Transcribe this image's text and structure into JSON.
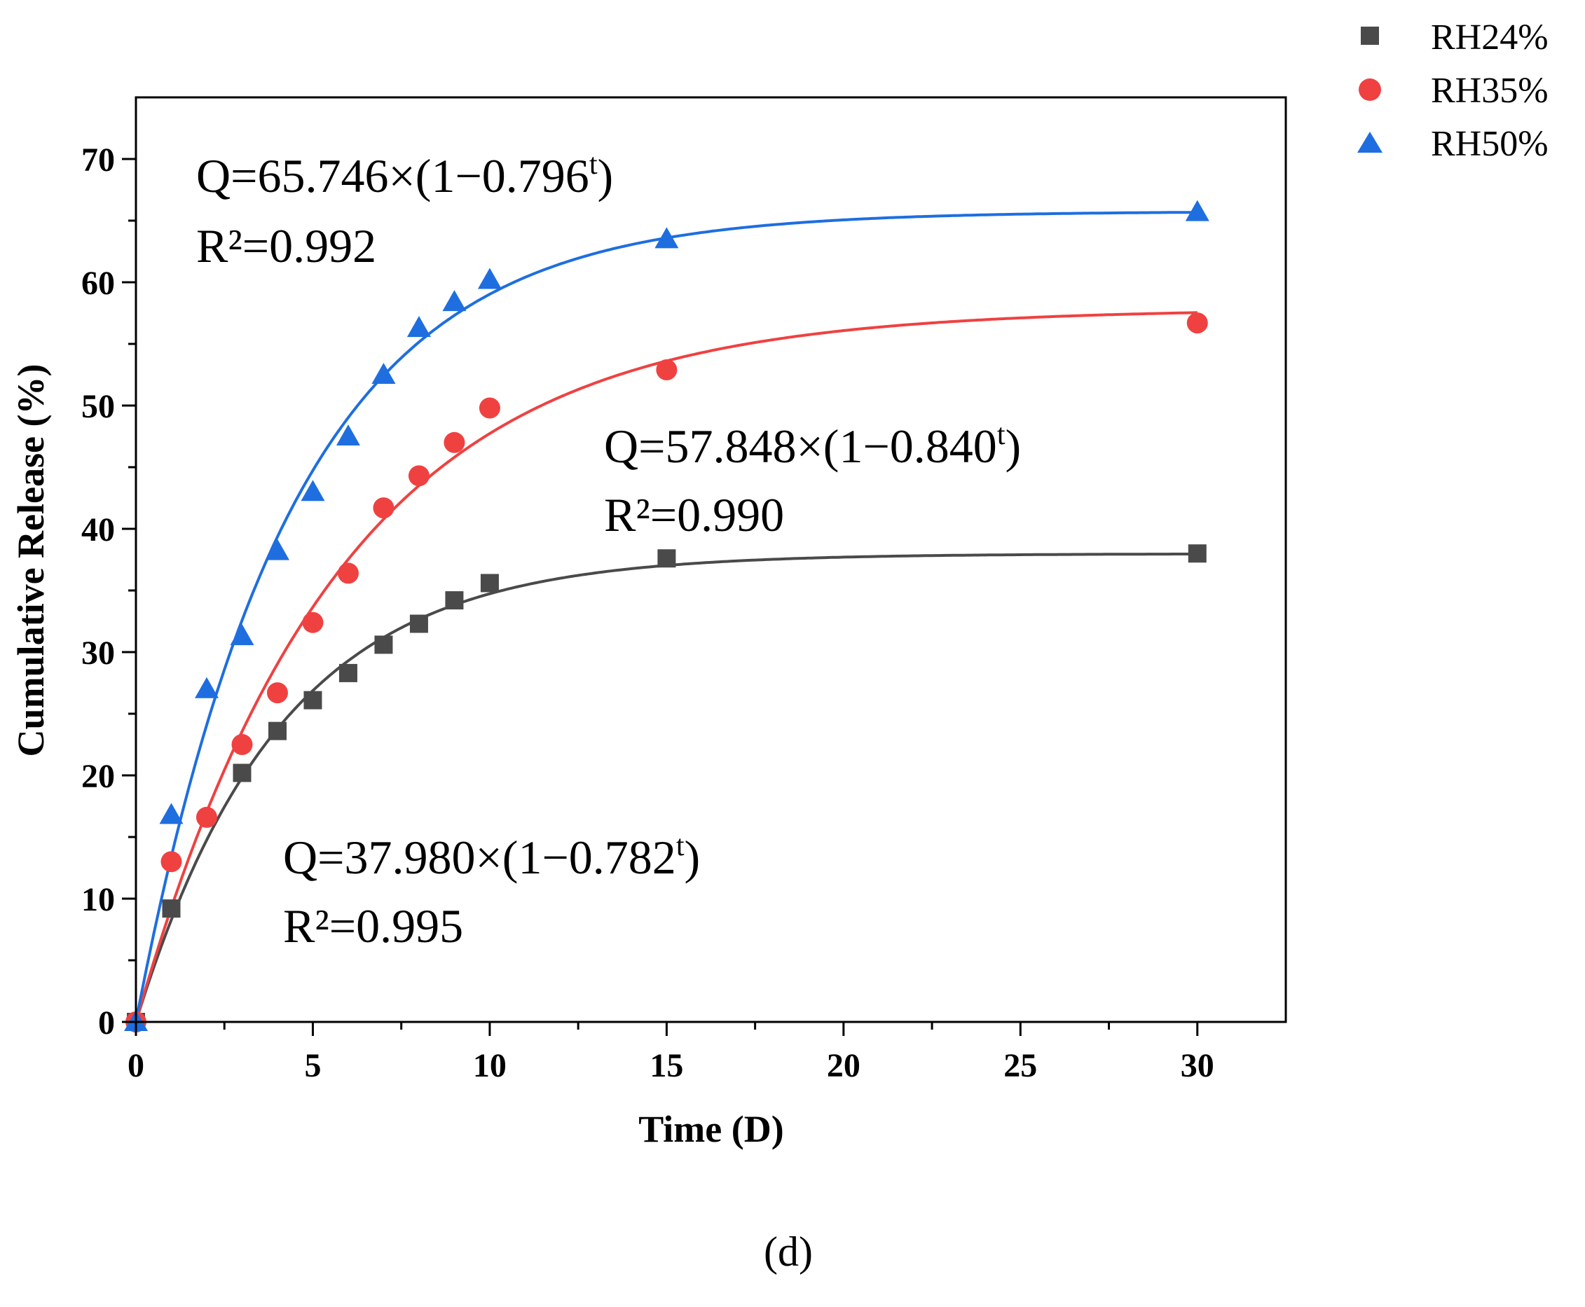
{
  "chart_data": {
    "type": "scatter",
    "title": "",
    "xlabel": "Time (D)",
    "ylabel": "Cumulative Release (%)",
    "xlim": [
      0,
      32.5
    ],
    "ylim": [
      0,
      75
    ],
    "x_ticks": [
      0,
      5,
      10,
      15,
      20,
      25,
      30
    ],
    "y_ticks": [
      0,
      10,
      20,
      30,
      40,
      50,
      60,
      70
    ],
    "grid": false,
    "legend_position": "top-right, outside plot",
    "panel_label": "(d)",
    "series": [
      {
        "name": "RH24%",
        "marker": "square",
        "color": "#4a4a4a",
        "x": [
          0,
          1,
          3,
          4,
          5,
          6,
          7,
          8,
          9,
          10,
          15,
          30
        ],
        "y": [
          0,
          9.2,
          20.2,
          23.6,
          26.1,
          28.3,
          30.6,
          32.3,
          34.2,
          35.6,
          37.6,
          38.0
        ],
        "fit": {
          "a": 37.98,
          "b": 0.782
        },
        "equation": "Q=37.980×(1−0.782",
        "equation_sup": "t",
        "equation_close": ")",
        "r2": "R²=0.995"
      },
      {
        "name": "RH35%",
        "marker": "circle",
        "color": "#f04141",
        "x": [
          0,
          1,
          2,
          3,
          4,
          5,
          6,
          7,
          8,
          9,
          10,
          15,
          30
        ],
        "y": [
          0,
          13.0,
          16.6,
          22.5,
          26.7,
          32.4,
          36.4,
          41.7,
          44.3,
          47.0,
          49.8,
          52.9,
          56.7
        ],
        "fit": {
          "a": 57.848,
          "b": 0.84
        },
        "equation": "Q=57.848×(1−0.840",
        "equation_sup": "t",
        "equation_close": ")",
        "r2": "R²=0.990"
      },
      {
        "name": "RH50%",
        "marker": "triangle",
        "color": "#1e6ee0",
        "x": [
          0,
          1,
          2,
          3,
          4,
          5,
          6,
          7,
          8,
          9,
          10,
          15,
          30
        ],
        "y": [
          0,
          16.8,
          27.0,
          31.3,
          38.2,
          43.0,
          47.5,
          52.5,
          56.3,
          58.4,
          60.2,
          63.5,
          65.7
        ],
        "fit": {
          "a": 65.746,
          "b": 0.796
        },
        "equation": "Q=65.746×(1−0.796",
        "equation_sup": "t",
        "equation_close": ")",
        "r2": "R²=0.992"
      }
    ]
  }
}
